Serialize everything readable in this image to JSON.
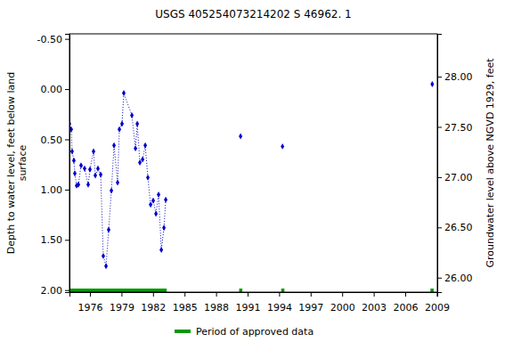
{
  "chart_data": {
    "type": "line",
    "title": "USGS 405254073214202 S 46962. 1",
    "ylabel": "Depth to water level, feet below land surface",
    "y2label": "Groundwater level above NGVD 1929, feet",
    "x": [
      1974.05,
      1974.22,
      1974.3,
      1974.47,
      1974.56,
      1974.73,
      1974.9,
      1975.15,
      1975.49,
      1975.83,
      1976.0,
      1976.34,
      1976.51,
      1976.76,
      1977.02,
      1977.27,
      1977.53,
      1977.78,
      1978.04,
      1978.29,
      1978.63,
      1978.8,
      1979.05,
      1979.22,
      1979.99,
      1980.33,
      1980.5,
      1980.75,
      1981.01,
      1981.26,
      1981.51,
      1981.77,
      1982.02,
      1982.28,
      1982.53,
      1982.79,
      1983.04,
      1983.21,
      1986.0,
      1990.33,
      1992.0,
      1994.32,
      2000.0,
      2008.57
    ],
    "series": [
      {
        "name": "Depth to water level",
        "color": "#0000cc",
        "marker": "diamond",
        "line_style": "dotted",
        "values": [
          0.345,
          0.4,
          0.62,
          0.71,
          0.84,
          0.96,
          0.95,
          0.76,
          0.79,
          0.95,
          0.8,
          0.62,
          0.86,
          0.79,
          0.85,
          1.66,
          1.76,
          1.4,
          1.01,
          0.56,
          0.93,
          0.4,
          0.345,
          0.04,
          0.26,
          0.59,
          0.345,
          0.73,
          0.7,
          0.56,
          0.88,
          1.15,
          1.11,
          1.24,
          1.05,
          1.6,
          1.38,
          1.1,
          null,
          0.47,
          null,
          0.57,
          null,
          -0.05
        ]
      }
    ],
    "xlim": [
      1974.05,
      2009.05
    ],
    "xticks": [
      1976,
      1979,
      1982,
      1985,
      1988,
      1991,
      1994,
      1997,
      2000,
      2003,
      2006,
      2009
    ],
    "ylim": [
      -0.55,
      2.02
    ],
    "yticks": [
      {
        "value": -0.5,
        "label": "-0.50"
      },
      {
        "value": 0,
        "label": "0.00"
      },
      {
        "value": 0.5,
        "label": "0.50"
      },
      {
        "value": 1,
        "label": "1.00"
      },
      {
        "value": 1.5,
        "label": "1.50"
      },
      {
        "value": 2,
        "label": "2.00"
      }
    ],
    "y2lim": [
      25.856,
      28.426
    ],
    "y2ticks": [
      {
        "value": 26,
        "label": "26.00"
      },
      {
        "value": 26.5,
        "label": "26.50"
      },
      {
        "value": 27,
        "label": "27.00"
      },
      {
        "value": 27.5,
        "label": "27.50"
      },
      {
        "value": 28,
        "label": "28.00"
      }
    ],
    "approved_periods": [
      [
        1974.05,
        1983.3
      ],
      [
        1990.2,
        1990.5
      ],
      [
        1994.2,
        1994.5
      ],
      [
        2008.4,
        2008.7
      ]
    ],
    "approved_label": "Period of approved data",
    "approved_color": "#009900",
    "grid": false
  }
}
